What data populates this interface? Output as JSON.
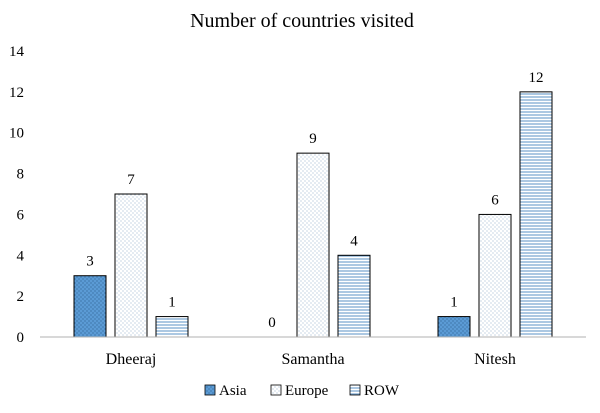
{
  "chart_data": {
    "type": "bar",
    "title": "Number of countries visited",
    "categories": [
      "Dheeraj",
      "Samantha",
      "Nitesh"
    ],
    "series": [
      {
        "name": "Asia",
        "values": [
          3,
          0,
          1
        ],
        "pattern": "dots-blue",
        "color": "#5b9bd5"
      },
      {
        "name": "Europe",
        "values": [
          7,
          9,
          6
        ],
        "pattern": "dots-light",
        "color": "#ffffff"
      },
      {
        "name": "ROW",
        "values": [
          1,
          4,
          12
        ],
        "pattern": "horizontal-lines",
        "color": "#2e75b6"
      }
    ],
    "ylim": [
      0,
      14
    ],
    "yticks": [
      "0",
      "2",
      "4",
      "6",
      "8",
      "10",
      "12",
      "14"
    ],
    "data_labels": [
      [
        "3",
        "",
        "1"
      ],
      [
        "7",
        "9",
        "6"
      ],
      [
        "1",
        "4",
        "12"
      ]
    ],
    "zero_labels": [
      [
        "",
        "0",
        ""
      ],
      [
        "",
        "",
        ""
      ],
      [
        "",
        "",
        ""
      ]
    ],
    "grid": false,
    "legend_position": "bottom"
  }
}
